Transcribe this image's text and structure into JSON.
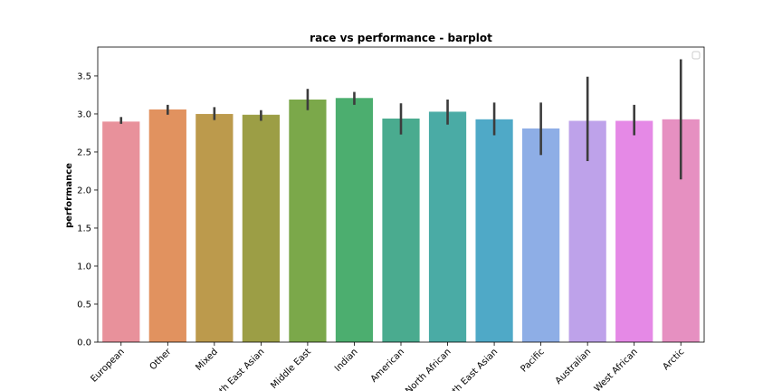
{
  "chart_data": {
    "type": "bar",
    "title": "race vs performance - barplot",
    "xlabel": "",
    "ylabel": "performance",
    "ylim": [
      0,
      3.88
    ],
    "yticks": [
      0.0,
      0.5,
      1.0,
      1.5,
      2.0,
      2.5,
      3.0,
      3.5
    ],
    "ytick_labels": [
      "0.0",
      "0.5",
      "1.0",
      "1.5",
      "2.0",
      "2.5",
      "3.0",
      "3.5"
    ],
    "grid": false,
    "legend": "top-right, empty",
    "categories": [
      "European",
      "Other",
      "Mixed",
      "South East Asian",
      "Middle East",
      "Indian",
      "American",
      "North African",
      "North East Asian",
      "Pacific",
      "Australian",
      "West African",
      "Arctic"
    ],
    "values": [
      2.9,
      3.06,
      3.0,
      2.99,
      3.19,
      3.21,
      2.94,
      3.03,
      2.93,
      2.81,
      2.91,
      2.91,
      2.93
    ],
    "error_low": [
      2.87,
      2.99,
      2.92,
      2.91,
      3.05,
      3.12,
      2.73,
      2.86,
      2.72,
      2.46,
      2.38,
      2.72,
      2.14
    ],
    "error_high": [
      2.96,
      3.12,
      3.09,
      3.05,
      3.33,
      3.29,
      3.14,
      3.19,
      3.15,
      3.15,
      3.49,
      3.12,
      3.72
    ],
    "colors": [
      "#e8919b",
      "#e1925f",
      "#bc9a4c",
      "#9c9e45",
      "#7ba84a",
      "#4cae6f",
      "#4aab8f",
      "#4aaba5",
      "#4fa9c7",
      "#8eaee6",
      "#bea2ea",
      "#e589e6",
      "#e690c1"
    ],
    "error_color": "#3c3c3c"
  }
}
